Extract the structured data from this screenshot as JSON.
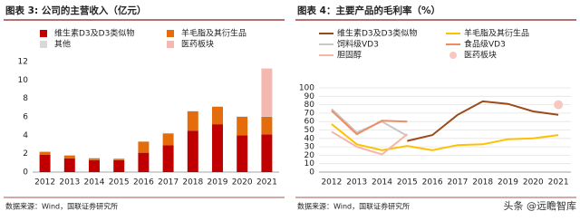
{
  "chart_data": [
    {
      "type": "bar",
      "stacked": true,
      "title": "图表 3: 公司的主营收入（亿元）",
      "categories": [
        "2012",
        "2013",
        "2014",
        "2015",
        "2016",
        "2017",
        "2018",
        "2019",
        "2020",
        "2021"
      ],
      "series": [
        {
          "name": "维生素D3及D3类似物",
          "color": "#c00000",
          "values": [
            1.9,
            1.5,
            1.3,
            1.3,
            2.1,
            2.9,
            4.5,
            5.2,
            4.0,
            4.1
          ]
        },
        {
          "name": "羊毛脂及其衍生品",
          "color": "#e46c0a",
          "values": [
            0.3,
            0.3,
            0.2,
            0.15,
            1.2,
            1.3,
            2.1,
            1.9,
            2.0,
            1.9
          ]
        },
        {
          "name": "其他",
          "color": "#d9d9d9",
          "values": [
            0.05,
            0.05,
            0.05,
            0.05,
            0.05,
            0.05,
            0.05,
            0.05,
            0.05,
            0.05
          ]
        },
        {
          "name": "医药板块",
          "color": "#f4b8b0",
          "values": [
            null,
            null,
            null,
            null,
            null,
            null,
            null,
            null,
            null,
            5.2
          ]
        }
      ],
      "ylim": [
        0,
        12
      ],
      "yticks": [
        0,
        2,
        4,
        6,
        8,
        10,
        12
      ],
      "grid": false,
      "source": "数据来源：Wind，国联证券研究所"
    },
    {
      "type": "line",
      "title": "图表 4：主要产品的毛利率（%）",
      "categories": [
        "2012",
        "2013",
        "2014",
        "2015",
        "2016",
        "2017",
        "2018",
        "2019",
        "2020",
        "2021"
      ],
      "series": [
        {
          "name": "维生素D3及D3类似物",
          "color": "#9c4a1a",
          "values": [
            null,
            null,
            null,
            37,
            44,
            68,
            84,
            81,
            72,
            68
          ]
        },
        {
          "name": "羊毛脂及其衍生品",
          "color": "#ffc000",
          "values": [
            57,
            33,
            26,
            31,
            26,
            32,
            33,
            39,
            40,
            44
          ]
        },
        {
          "name": "饲料级VD3",
          "color": "#c8c8c8",
          "values": [
            75,
            47,
            60,
            43,
            null,
            null,
            null,
            null,
            null,
            null
          ]
        },
        {
          "name": "食品级VD3",
          "color": "#f08c64",
          "values": [
            73,
            45,
            61,
            60,
            null,
            null,
            null,
            null,
            null,
            null
          ]
        },
        {
          "name": "胆固醇",
          "color": "#f6b6a6",
          "values": [
            48,
            30,
            21,
            45,
            null,
            null,
            null,
            null,
            null,
            null
          ]
        },
        {
          "name": "医药板块",
          "color": "#f8c8c0",
          "style": "marker",
          "values": [
            null,
            null,
            null,
            null,
            null,
            null,
            null,
            null,
            null,
            80
          ]
        }
      ],
      "ylim": [
        0,
        100
      ],
      "yticks": [
        0,
        10,
        20,
        30,
        40,
        50,
        60,
        70,
        80,
        90,
        100
      ],
      "grid": true,
      "source": "数据来源：Wind，国联证券研究所",
      "watermark": "头条 @远瞻智库"
    }
  ]
}
